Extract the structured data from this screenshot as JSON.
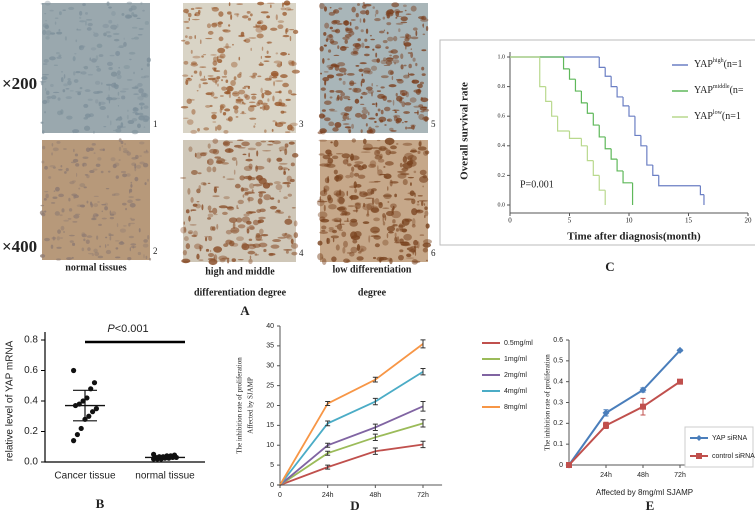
{
  "figure": {
    "panel_labels": [
      "A",
      "B",
      "C",
      "D",
      "E"
    ],
    "magnifications": [
      "×200",
      "×400"
    ],
    "image_numbers": [
      "1",
      "2",
      "3",
      "4",
      "5",
      "6"
    ],
    "captions": [
      "normal tissues",
      "high and middle",
      "differentiation degree",
      "low differentiation",
      "degree"
    ]
  },
  "chart_data": [
    {
      "type": "survival",
      "ylabel": "Overall survival rate",
      "xlabel": "Time after diagnosis(month)",
      "annotation": "P=0.001",
      "xlim": [
        0,
        20
      ],
      "ylim": [
        0,
        1
      ],
      "xticks": [
        0,
        5,
        10,
        15,
        20
      ],
      "yticks": [
        {
          "value": 0,
          "label": "0.0"
        },
        0.2,
        0.4,
        0.6,
        0.8,
        {
          "value": 1,
          "label": "1.0"
        }
      ],
      "series": [
        {
          "name": "YAP",
          "superscript": "high",
          "suffix": "(n=1",
          "color": "#6b7fc4",
          "x": [
            0,
            7.5,
            8,
            8.5,
            9,
            9.5,
            10,
            10.5,
            11,
            11.5,
            12,
            12.5,
            16,
            16.3
          ],
          "values": [
            1,
            0.93,
            0.87,
            0.8,
            0.73,
            0.67,
            0.6,
            0.47,
            0.4,
            0.27,
            0.2,
            0.13,
            0.07,
            0
          ]
        },
        {
          "name": "YAP",
          "superscript": "middle",
          "suffix": "(n=",
          "color": "#5fb85a",
          "x": [
            0,
            4.5,
            5,
            5.5,
            6,
            6.5,
            7,
            7.5,
            8,
            8.5,
            9,
            9.5,
            10.3
          ],
          "values": [
            1,
            0.92,
            0.85,
            0.77,
            0.69,
            0.62,
            0.54,
            0.46,
            0.38,
            0.31,
            0.23,
            0.15,
            0
          ]
        },
        {
          "name": "YAP",
          "superscript": "low",
          "suffix": "(n=1",
          "color": "#b9d98e",
          "x": [
            0,
            2.5,
            3,
            3.5,
            4,
            5,
            6,
            6.5,
            7,
            7.5,
            8
          ],
          "values": [
            1,
            0.8,
            0.7,
            0.6,
            0.5,
            0.45,
            0.4,
            0.3,
            0.2,
            0.1,
            0
          ]
        }
      ]
    },
    {
      "type": "dot",
      "ylabel": "relative level of YAP mRNA",
      "annotation_prefix": "P",
      "annotation": "<0.001",
      "categories": [
        "Cancer tissue",
        "normal tissue"
      ],
      "points": [
        [
          0.6,
          0.52,
          0.48,
          0.42,
          0.4,
          0.38,
          0.37,
          0.35,
          0.33,
          0.3,
          0.28,
          0.22,
          0.18,
          0.14
        ],
        [
          0.05,
          0.045,
          0.04,
          0.04,
          0.035,
          0.035,
          0.03,
          0.03,
          0.03,
          0.025,
          0.025,
          0.02,
          0.02,
          0.02
        ]
      ],
      "means": [
        0.37,
        0.03
      ],
      "errors": [
        0.1,
        0.01
      ],
      "ylim": [
        0,
        0.8
      ],
      "yticks": [
        {
          "value": 0,
          "label": "0.0"
        },
        0.2,
        0.4,
        0.6,
        0.8
      ]
    },
    {
      "type": "line",
      "ylabel": [
        "The inhibition rate of proliferation",
        "Affected by SJAMP"
      ],
      "categories": [
        "0",
        "24h",
        "48h",
        "72h"
      ],
      "ylim": [
        0,
        40
      ],
      "yticks": [
        0,
        5,
        10,
        15,
        20,
        25,
        30,
        35,
        40
      ],
      "series": [
        {
          "name": "0.5mg/ml",
          "color": "#c0504d",
          "values": [
            0,
            4.5,
            8.5,
            10.2
          ],
          "errors": [
            0,
            0.5,
            0.8,
            0.8
          ]
        },
        {
          "name": "1mg/ml",
          "color": "#9bbb59",
          "values": [
            0,
            8,
            12,
            15.5
          ],
          "errors": [
            0,
            0.5,
            0.8,
            0.9
          ]
        },
        {
          "name": "2mg/ml",
          "color": "#8064a2",
          "values": [
            0,
            10,
            14.5,
            19.8
          ],
          "errors": [
            0,
            0.5,
            0.8,
            1.2
          ]
        },
        {
          "name": "4mg/ml",
          "color": "#4bacc6",
          "values": [
            0,
            15.5,
            21,
            28.5
          ],
          "errors": [
            0,
            0.6,
            0.8,
            0.8
          ]
        },
        {
          "name": "8mg/ml",
          "color": "#f79646",
          "values": [
            0,
            20.5,
            26.5,
            35.5
          ],
          "errors": [
            0,
            0.5,
            0.6,
            1
          ]
        }
      ]
    },
    {
      "type": "line",
      "ylabel": "The inhibition rate of proliferation",
      "xlabel": "Affected by 8mg/ml SJAMP",
      "categories": [
        null,
        "24h",
        "48h",
        "72h"
      ],
      "ylim": [
        0,
        0.6
      ],
      "yticks": [
        0,
        0.1,
        0.2,
        0.3,
        0.4,
        0.5,
        0.6
      ],
      "legend": "right",
      "series": [
        {
          "name": "YAP siRNA",
          "color": "#4a7ebb",
          "marker": "diamond",
          "values": [
            0,
            0.25,
            0.36,
            0.55
          ],
          "errors": [
            0,
            0.015,
            0.01,
            0.005
          ]
        },
        {
          "name": "control siRNA",
          "color": "#c0504d",
          "marker": "square",
          "values": [
            0,
            0.19,
            0.28,
            0.4
          ],
          "errors": [
            0,
            0.015,
            0.04,
            0.005
          ]
        }
      ]
    }
  ]
}
